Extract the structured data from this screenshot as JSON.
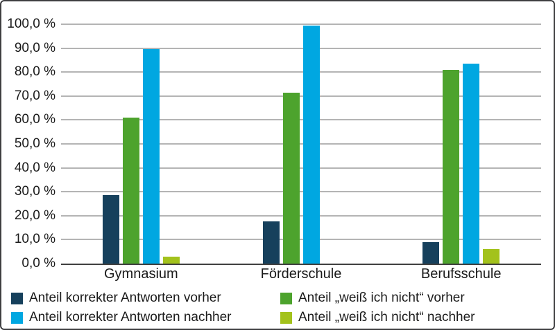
{
  "chart_data": {
    "type": "bar",
    "categories": [
      "Gymnasium",
      "Förderschule",
      "Berufsschule"
    ],
    "series": [
      {
        "name": "Anteil korrekter Antworten vorher",
        "color": "#16405c",
        "values": [
          28.5,
          17.5,
          9.0
        ]
      },
      {
        "name": "Anteil „weiß ich nicht“ vorher",
        "color": "#4da32d",
        "values": [
          61.0,
          71.5,
          81.0
        ]
      },
      {
        "name": "Anteil korrekter Antworten nachher",
        "color": "#00a7e1",
        "values": [
          89.5,
          99.5,
          83.5
        ]
      },
      {
        "name": "Anteil „weiß ich nicht“ nachher",
        "color": "#a3c21c",
        "values": [
          3.0,
          0.0,
          6.0
        ]
      }
    ],
    "title": "",
    "xlabel": "",
    "ylabel": "",
    "ylim": [
      0,
      100
    ],
    "ytick_step": 10,
    "yticks": [
      "0,0 %",
      "10,0 %",
      "20,0 %",
      "30,0 %",
      "40,0 %",
      "50,0 %",
      "60,0 %",
      "70,0 %",
      "80,0 %",
      "90,0 %",
      "100,0 %"
    ],
    "grid": true,
    "gridline_color": "#b4b4b4",
    "axis_color": "#3f3f3f",
    "legend_position": "bottom",
    "legend_columns": 2,
    "legend_grid_row_major": [
      0,
      1,
      2,
      3
    ]
  }
}
